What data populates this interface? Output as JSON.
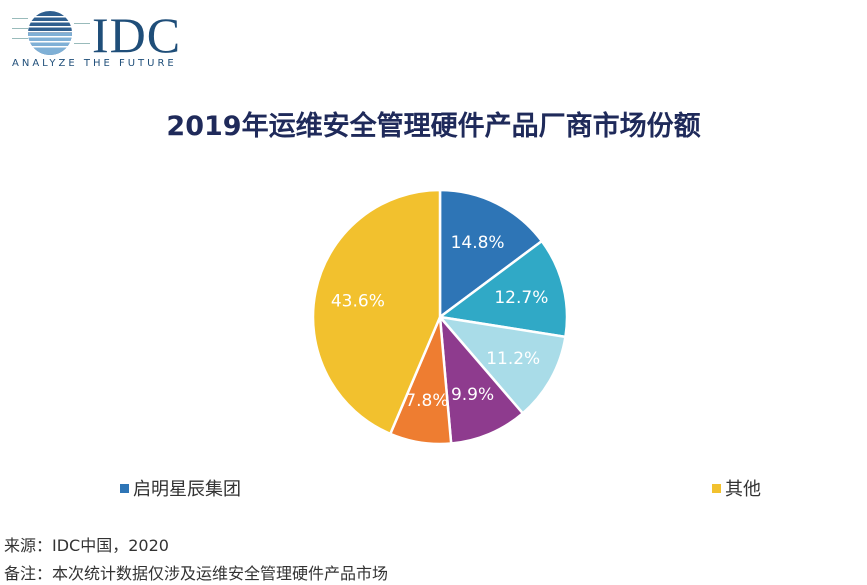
{
  "logo": {
    "text": "IDC",
    "tagline": "ANALYZE THE FUTURE"
  },
  "chart_data": {
    "type": "pie",
    "title": "2019年运维安全管理硬件产品厂商市场份额",
    "values": [
      14.8,
      12.7,
      11.2,
      9.9,
      7.8,
      43.6
    ],
    "labels": [
      "14.8%",
      "12.7%",
      "11.2%",
      "9.9%",
      "7.8%",
      "43.6%"
    ],
    "colors": [
      "#2e75b6",
      "#30a9c6",
      "#a9dce8",
      "#8e3b8e",
      "#ee7d31",
      "#f2c12e"
    ],
    "start": "top",
    "direction": "clockwise",
    "legend": [
      {
        "name": "启明星辰集团",
        "color": "#2e75b6"
      },
      {
        "name": "其他",
        "color": "#f2c12e"
      }
    ],
    "legend_placement": "bottom"
  },
  "footer": {
    "source": "来源：IDC中国，2020",
    "note": "备注：本次统计数据仅涉及运维安全管理硬件产品市场"
  }
}
